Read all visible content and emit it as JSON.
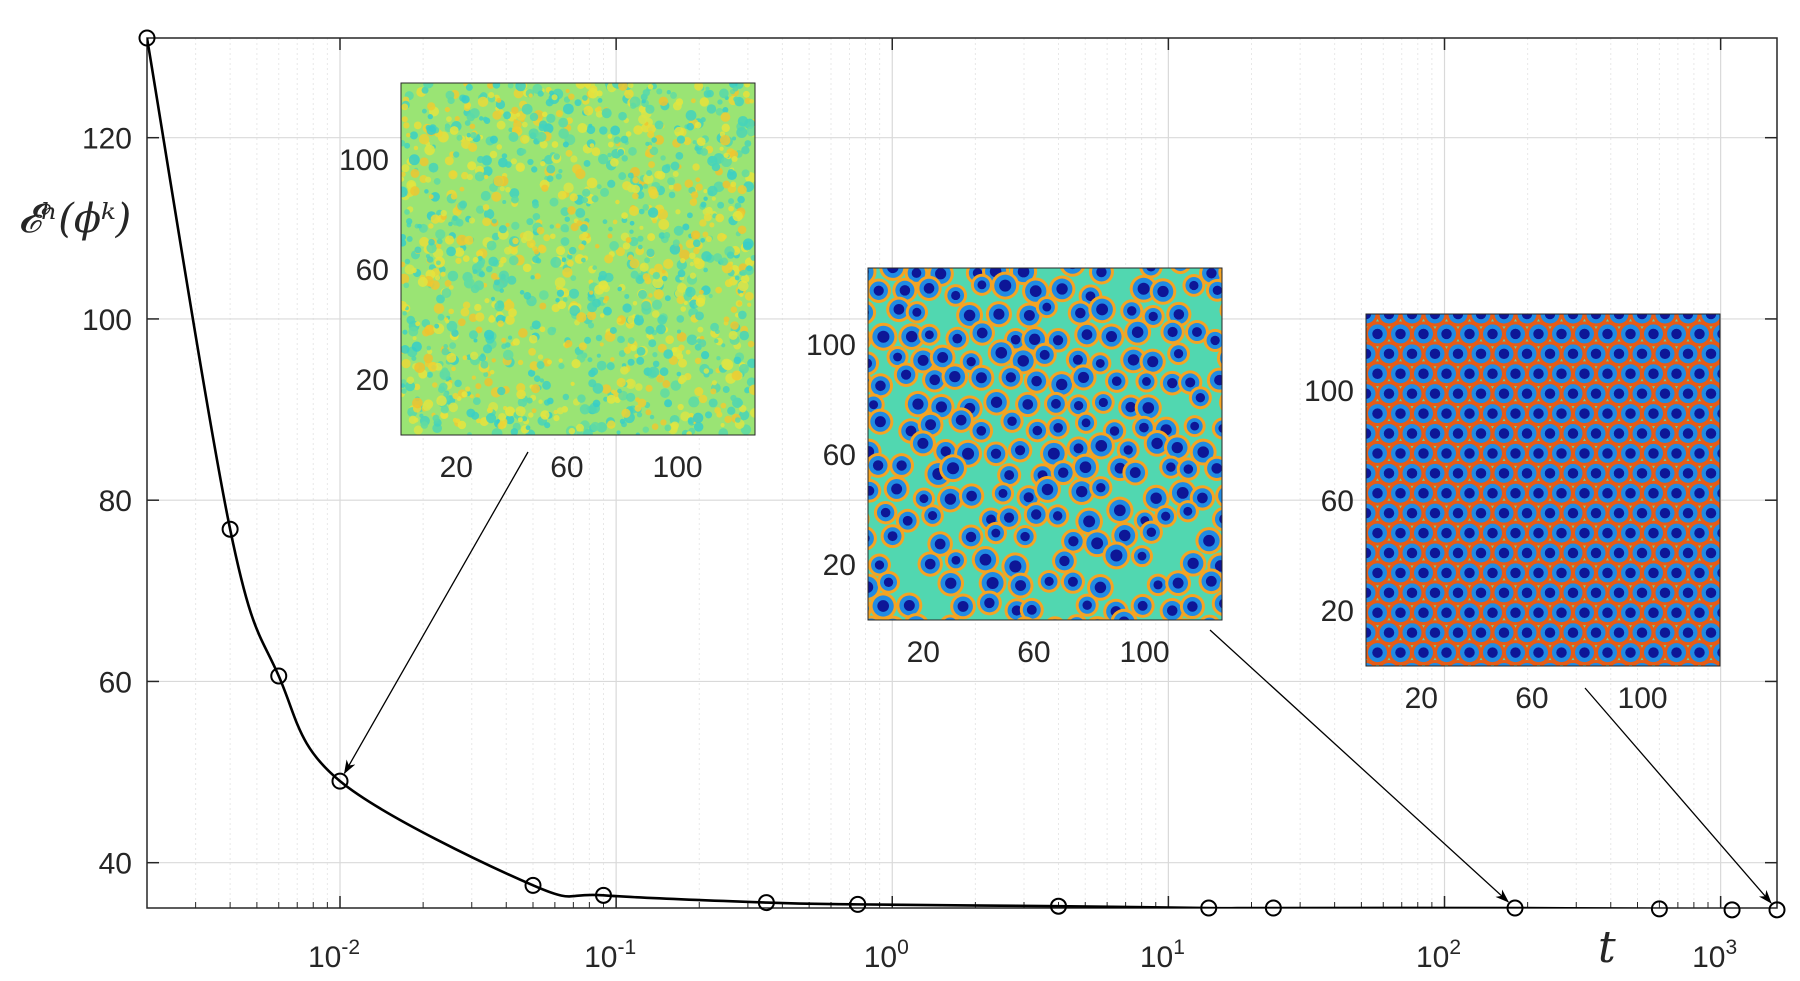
{
  "chart_data": {
    "type": "line",
    "xscale": "log",
    "xlim": [
      0.002,
      1600
    ],
    "ylim": [
      35,
      131
    ],
    "grid": true,
    "xlabel": "t",
    "ylabel": "𝓔ʰ(ϕᵏ)",
    "xtick_labels": [
      {
        "base": "10",
        "exp": "-2"
      },
      {
        "base": "10",
        "exp": "-1"
      },
      {
        "base": "10",
        "exp": "0"
      },
      {
        "base": "10",
        "exp": "1"
      },
      {
        "base": "10",
        "exp": "2"
      },
      {
        "base": "10",
        "exp": "3"
      }
    ],
    "ytick_labels": [
      "40",
      "60",
      "80",
      "100",
      "120"
    ],
    "series": [
      {
        "color": "#000000",
        "marker": "circle",
        "x": [
          0.002,
          0.004,
          0.006,
          0.01,
          0.05,
          0.09,
          0.35,
          0.75,
          4,
          14,
          24,
          180,
          600,
          1100,
          1600
        ],
        "y": [
          131,
          76.8,
          60.6,
          49.0,
          37.5,
          36.4,
          35.6,
          35.4,
          35.2,
          35.0,
          35.0,
          35.0,
          34.9,
          34.8,
          34.8
        ]
      }
    ],
    "insets": [
      {
        "kind": "field-image",
        "pattern": "noise",
        "xtick_labels": [
          "20",
          "60",
          "100"
        ],
        "ytick_labels": [
          "20",
          "60",
          "100"
        ],
        "points_to": {
          "x": 0.01,
          "y": 49.0
        }
      },
      {
        "kind": "field-image",
        "pattern": "disordered-spots",
        "xtick_labels": [
          "20",
          "60",
          "100"
        ],
        "ytick_labels": [
          "20",
          "60",
          "100"
        ],
        "points_to": {
          "x": 180,
          "y": 35.0
        }
      },
      {
        "kind": "field-image",
        "pattern": "hexagonal-spots",
        "xtick_labels": [
          "20",
          "60",
          "100"
        ],
        "ytick_labels": [
          "20",
          "60",
          "100"
        ],
        "points_to": {
          "x": 1600,
          "y": 34.8
        }
      }
    ],
    "colors": {
      "line": "#000000",
      "grid": "#dcdcdc",
      "axes": "#262626",
      "colormap": [
        "#0a0a8c",
        "#1f6ee8",
        "#25c9d8",
        "#79e38c",
        "#e8e53c",
        "#f7941d",
        "#d6280f"
      ]
    }
  }
}
